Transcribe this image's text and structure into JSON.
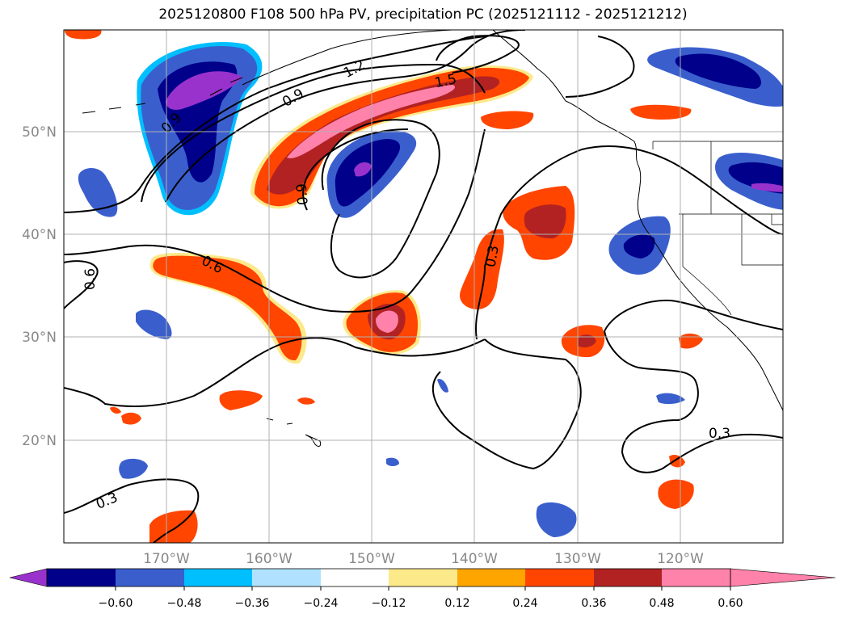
{
  "title": "2025120800 F108 500 hPa PV, precipitation PC (2025121112 - 2025121212)",
  "map": {
    "lon_ticks": [
      "170°W",
      "160°W",
      "150°W",
      "140°W",
      "130°W",
      "120°W"
    ],
    "lat_ticks": [
      "50°N",
      "40°N",
      "30°N",
      "20°N"
    ],
    "grid": true,
    "contour_labels": [
      "1.2",
      "1.5",
      "0.9",
      "0.9",
      "0.9",
      "0.6",
      "0.6",
      "0.3",
      "0.3",
      "0.3"
    ]
  },
  "colorbar": {
    "tick_labels": [
      "−0.60",
      "−0.48",
      "−0.36",
      "−0.24",
      "−0.12",
      "0.12",
      "0.24",
      "0.36",
      "0.48",
      "0.60"
    ],
    "colors": [
      "#9932cc",
      "#00008b",
      "#3a5fcd",
      "#00bfff",
      "#b0e2ff",
      "#ffffff",
      "#fce98a",
      "#ffa500",
      "#ff4500",
      "#b22222",
      "#ff82ab"
    ],
    "extend": "both"
  }
}
